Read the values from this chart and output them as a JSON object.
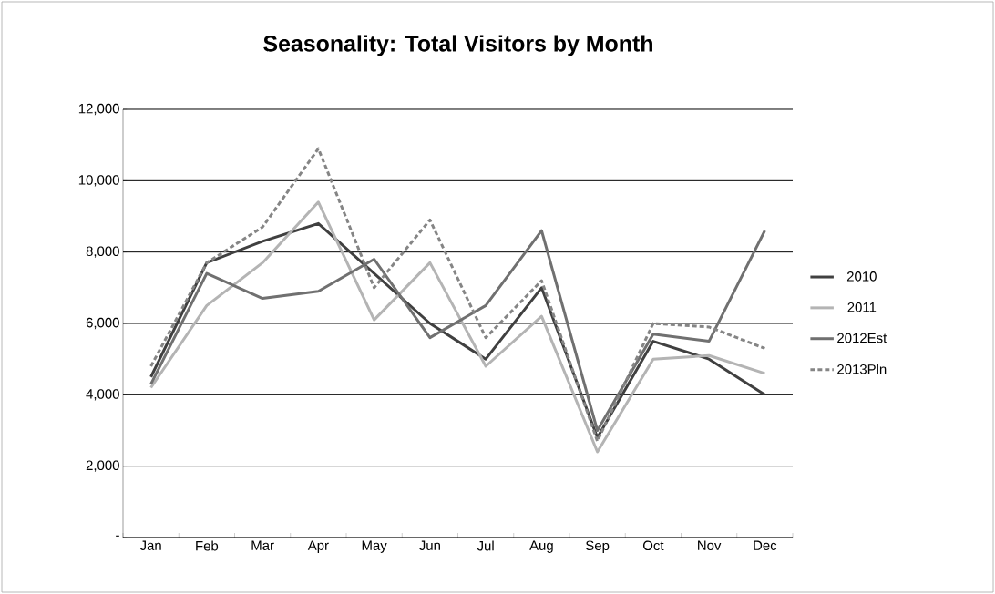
{
  "chart_data": {
    "type": "line",
    "title": "Seasonality: Total Visitors by Month",
    "categories": [
      "Jan",
      "Feb",
      "Mar",
      "Apr",
      "May",
      "Jun",
      "Jul",
      "Aug",
      "Sep",
      "Oct",
      "Nov",
      "Dec"
    ],
    "series": [
      {
        "name": "2010",
        "color": "#404040",
        "line_style": "solid",
        "values": [
          4500,
          7700,
          8300,
          8800,
          7400,
          6000,
          5000,
          7000,
          2800,
          5500,
          5000,
          4000
        ]
      },
      {
        "name": "2011",
        "color": "#b4b4b4",
        "line_style": "solid",
        "values": [
          4200,
          6500,
          7700,
          9400,
          6100,
          7700,
          4800,
          6200,
          2400,
          5000,
          5100,
          4600
        ]
      },
      {
        "name": "2012Est",
        "color": "#707070",
        "line_style": "solid",
        "values": [
          4300,
          7400,
          6700,
          6900,
          7800,
          5600,
          6500,
          8600,
          3000,
          5700,
          5500,
          8600
        ]
      },
      {
        "name": "2013Pln",
        "color": "#858585",
        "line_style": "dashed",
        "values": [
          4800,
          7700,
          8700,
          10900,
          7000,
          8900,
          5600,
          7200,
          2700,
          6000,
          5900,
          5300
        ]
      }
    ],
    "ylim": [
      0,
      12000
    ],
    "yticks": [
      {
        "value": 0,
        "label": "-"
      },
      {
        "value": 2000,
        "label": "2,000"
      },
      {
        "value": 4000,
        "label": "4,000"
      },
      {
        "value": 6000,
        "label": "6,000"
      },
      {
        "value": 8000,
        "label": "8,000"
      },
      {
        "value": 10000,
        "label": "10,000"
      },
      {
        "value": 12000,
        "label": "12,000"
      }
    ],
    "grid": "y",
    "legend": "right",
    "marker": "none"
  }
}
